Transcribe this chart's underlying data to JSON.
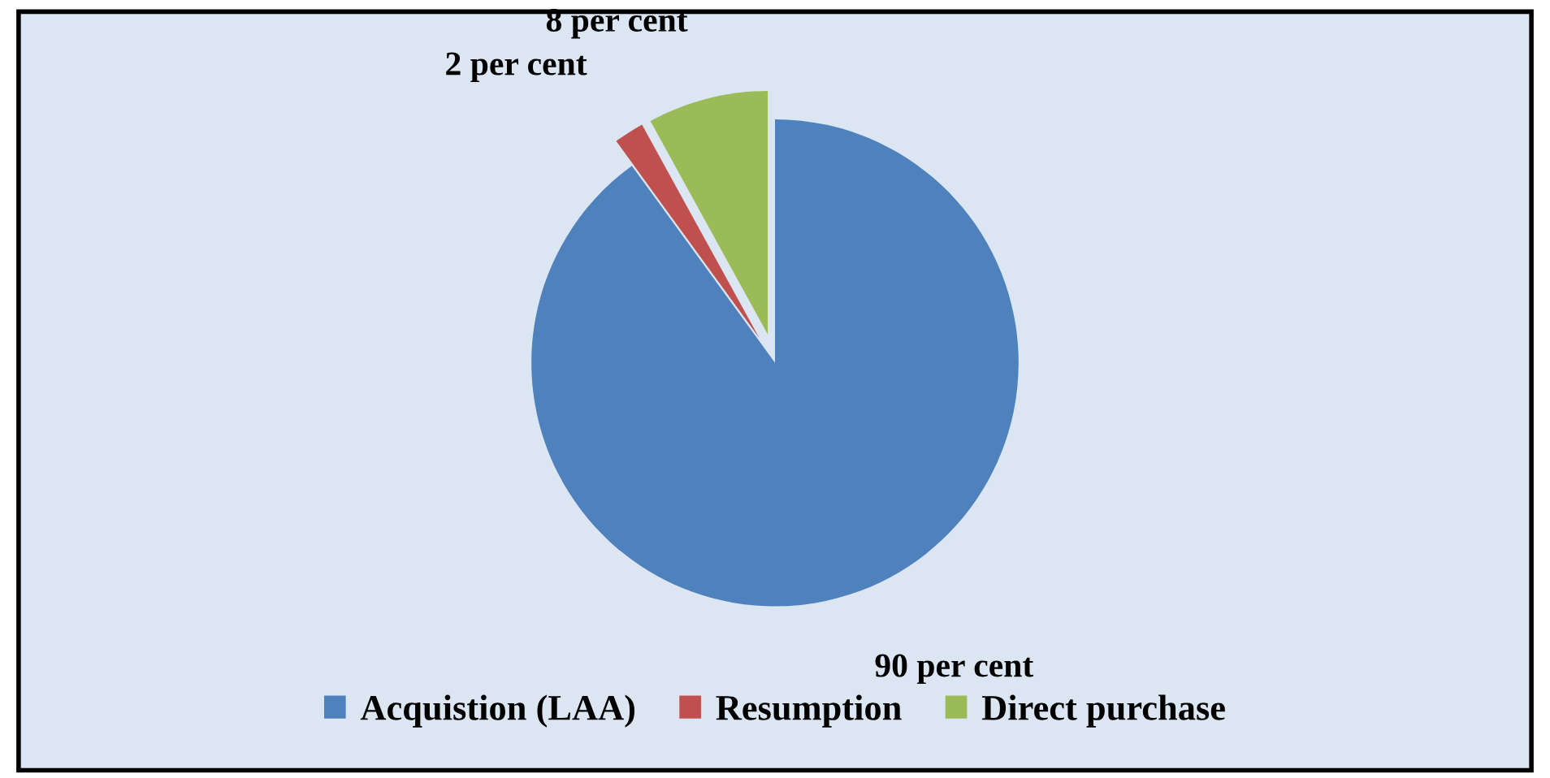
{
  "chart_data": {
    "type": "pie",
    "categories": [
      "Acquistion (LAA)",
      "Resumption",
      "Direct purchase"
    ],
    "values": [
      90,
      2,
      8
    ],
    "colors": [
      "#4f81bd",
      "#c0504d",
      "#9bbb59"
    ],
    "value_labels": [
      "90 per cent",
      "2 per cent",
      "8 per cent"
    ],
    "legend": "bottom"
  }
}
